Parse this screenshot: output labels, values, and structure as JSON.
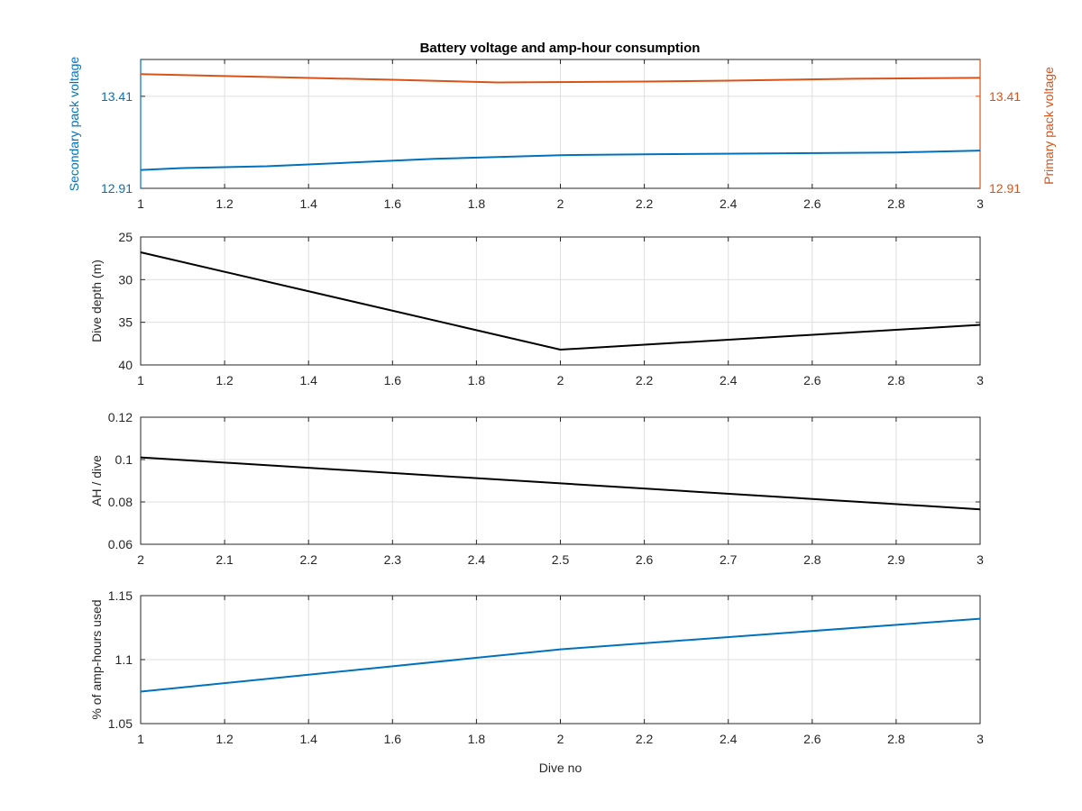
{
  "chart_data": [
    {
      "type": "line",
      "title": "Battery voltage and amp-hour consumption",
      "xlabel": "",
      "ylabel": "Secondary pack voltage",
      "ylabel_right": "Primary pack voltage",
      "xlim": [
        1,
        3
      ],
      "x_ticks": [
        "1",
        "1.2",
        "1.4",
        "1.6",
        "1.8",
        "2",
        "2.2",
        "2.4",
        "2.6",
        "2.8",
        "3"
      ],
      "ylim": [
        12.91,
        13.61
      ],
      "y_ticks": [
        "12.91",
        "13.41"
      ],
      "y_ticks_right": [
        "12.91",
        "13.41"
      ],
      "grid": true,
      "colors": {
        "left_axis": "#0072BD",
        "right_axis": "#D95319"
      },
      "series": [
        {
          "name": "Secondary pack voltage",
          "axis": "left",
          "color": "#0072BD",
          "x": [
            1.0,
            1.1,
            1.3,
            1.5,
            1.7,
            2.0,
            2.2,
            2.5,
            2.8,
            3.0
          ],
          "y": [
            13.01,
            13.02,
            13.03,
            13.05,
            13.07,
            13.09,
            13.095,
            13.1,
            13.105,
            13.115
          ]
        },
        {
          "name": "Primary pack voltage",
          "axis": "right",
          "color": "#D95319",
          "x": [
            1.0,
            1.3,
            1.6,
            1.85,
            2.2,
            2.4,
            2.7,
            3.0
          ],
          "y": [
            13.53,
            13.515,
            13.5,
            13.485,
            13.49,
            13.495,
            13.505,
            13.51
          ]
        }
      ]
    },
    {
      "type": "line",
      "title": "",
      "xlabel": "",
      "ylabel": "Dive depth (m)",
      "xlim": [
        1,
        3
      ],
      "x_ticks": [
        "1",
        "1.2",
        "1.4",
        "1.6",
        "1.8",
        "2",
        "2.2",
        "2.4",
        "2.6",
        "2.8",
        "3"
      ],
      "ylim": [
        25,
        40
      ],
      "y_reversed": true,
      "y_ticks": [
        "25",
        "30",
        "35",
        "40"
      ],
      "grid": true,
      "series": [
        {
          "color": "#000000",
          "x": [
            1,
            2,
            3
          ],
          "y": [
            26.8,
            38.2,
            35.3
          ]
        }
      ]
    },
    {
      "type": "line",
      "title": "",
      "xlabel": "",
      "ylabel": "AH / dive",
      "xlim": [
        2,
        3
      ],
      "x_ticks": [
        "2",
        "2.1",
        "2.2",
        "2.3",
        "2.4",
        "2.5",
        "2.6",
        "2.7",
        "2.8",
        "2.9",
        "3"
      ],
      "ylim": [
        0.06,
        0.12
      ],
      "y_ticks": [
        "0.06",
        "0.08",
        "0.1",
        "0.12"
      ],
      "grid": true,
      "series": [
        {
          "color": "#000000",
          "x": [
            2,
            3
          ],
          "y": [
            0.101,
            0.0765
          ]
        }
      ]
    },
    {
      "type": "line",
      "title": "",
      "xlabel": "Dive no",
      "ylabel": "% of amp-hours used",
      "xlim": [
        1,
        3
      ],
      "x_ticks": [
        "1",
        "1.2",
        "1.4",
        "1.6",
        "1.8",
        "2",
        "2.2",
        "2.4",
        "2.6",
        "2.8",
        "3"
      ],
      "ylim": [
        1.05,
        1.15
      ],
      "y_ticks": [
        "1.05",
        "1.1",
        "1.15"
      ],
      "grid": true,
      "series": [
        {
          "color": "#0072BD",
          "x": [
            1,
            2,
            3
          ],
          "y": [
            1.075,
            1.108,
            1.132
          ]
        }
      ]
    }
  ]
}
